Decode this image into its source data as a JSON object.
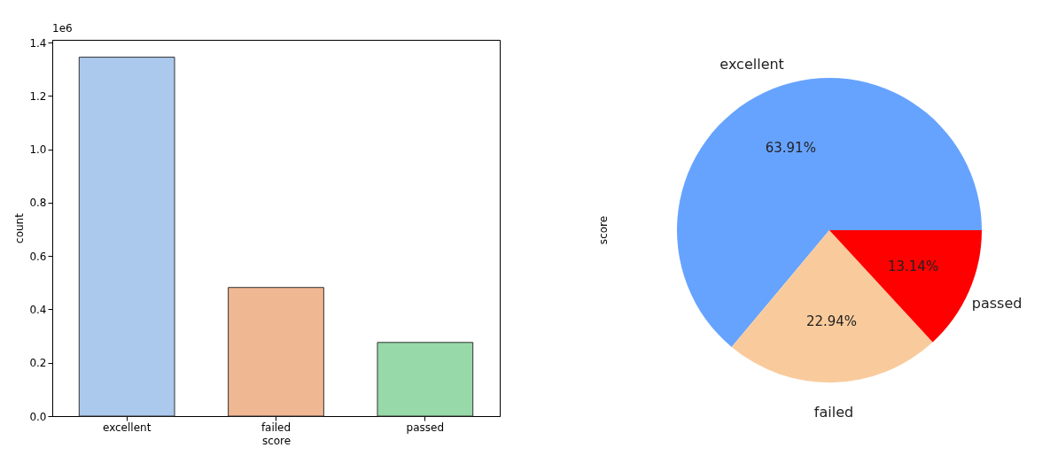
{
  "chart_data": [
    {
      "type": "bar",
      "categories": [
        "excellent",
        "failed",
        "passed"
      ],
      "values": [
        1.345,
        0.482,
        0.276
      ],
      "colors": [
        "#abc8ed",
        "#f0b793",
        "#97d9a8"
      ],
      "xlabel": "score",
      "ylabel": "count",
      "ylim": [
        0,
        1.41
      ],
      "yticks": [
        {
          "value": 0,
          "label": "0.0"
        },
        {
          "value": 0.2,
          "label": "0.2"
        },
        {
          "value": 0.4,
          "label": "0.4"
        },
        {
          "value": 0.6,
          "label": "0.6"
        },
        {
          "value": 0.8,
          "label": "0.8"
        },
        {
          "value": 1,
          "label": "1.0"
        },
        {
          "value": 1.2,
          "label": "1.2"
        },
        {
          "value": 1.4,
          "label": "1.4"
        }
      ],
      "annotations": [
        "1e6"
      ]
    },
    {
      "type": "pie",
      "categories": [
        "excellent",
        "failed",
        "passed"
      ],
      "values": [
        63.91,
        22.94,
        13.14
      ],
      "colors": [
        "#66a3ff",
        "#f9cb9c",
        "#ff0000"
      ],
      "value_labels": [
        "63.91%",
        "22.94%",
        "13.14%"
      ],
      "ylabel": "score"
    }
  ]
}
